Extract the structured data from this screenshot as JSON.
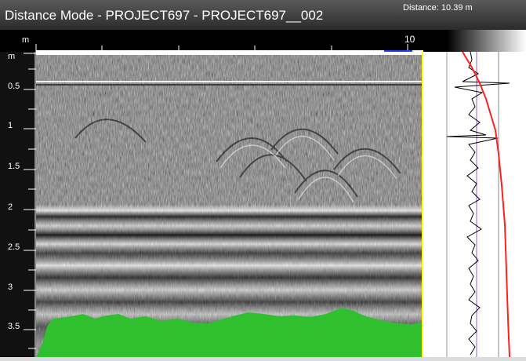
{
  "window": {
    "title": "Distance Mode - PROJECT697 - PROJECT697__002",
    "distance_readout": "Distance: 10.39 m"
  },
  "horizontal_ruler": {
    "unit": "m",
    "tick_label_10": "10"
  },
  "vertical_ruler": {
    "unit": "m",
    "labels": [
      "0.5",
      "1",
      "1.5",
      "2",
      "2.5",
      "3",
      "3.5"
    ]
  },
  "colors": {
    "ground_fill": "#2fbf2f",
    "velocity_curve": "#ff2020",
    "radargram_bg": "#7a7a7a",
    "accent_blue": "#1e3cff",
    "yellow_marker": "#ffff00"
  },
  "icons": {
    "none": ""
  }
}
